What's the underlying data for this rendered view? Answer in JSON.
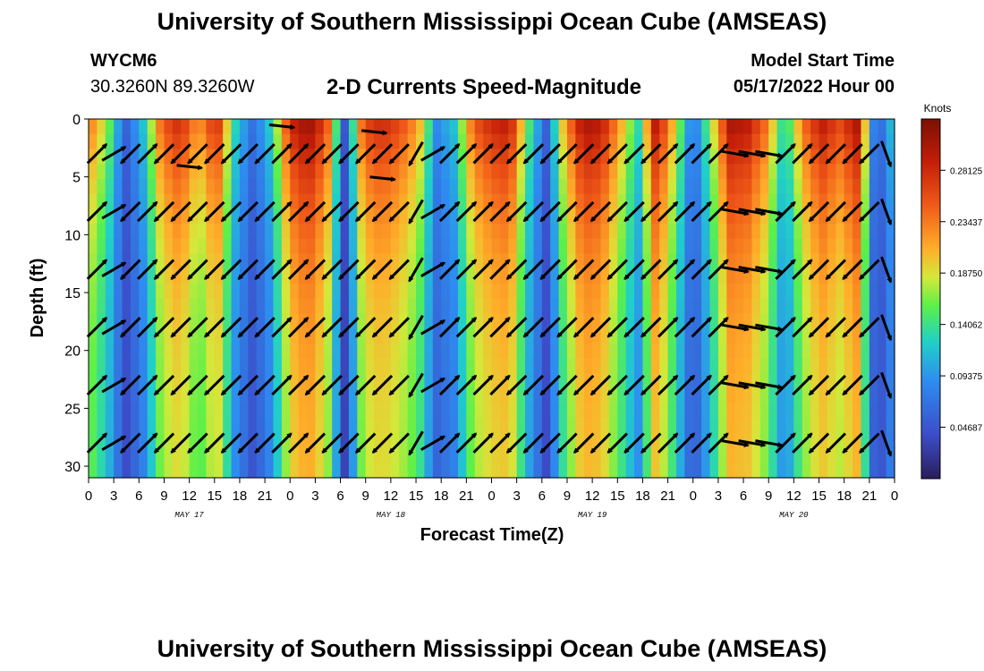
{
  "page": {
    "title": "University of Southern Mississippi Ocean Cube (AMSEAS)",
    "title_bottom": "University of Southern Mississippi Ocean Cube (AMSEAS)",
    "station_id": "WYCM6",
    "station_coords": "30.3260N  89.3260W",
    "subtitle": "2-D Currents Speed-Magnitude",
    "model_start_label": "Model Start Time",
    "model_start_value": "05/17/2022 Hour 00"
  },
  "chart_data": {
    "type": "heatmap",
    "title": "2-D Currents Speed-Magnitude",
    "xlabel": "Forecast Time(Z)",
    "ylabel": "Depth (ft)",
    "x_range_hours": [
      0,
      96
    ],
    "ylim": [
      0,
      31
    ],
    "y_inverted": true,
    "y_ticks": [
      0,
      5,
      10,
      15,
      20,
      25,
      30
    ],
    "x_tick_hours": [
      0,
      3,
      6,
      9,
      12,
      15,
      18,
      21,
      24,
      27,
      30,
      33,
      36,
      39,
      42,
      45,
      48,
      51,
      54,
      57,
      60,
      63,
      66,
      69,
      72,
      75,
      78,
      81,
      84,
      87,
      90,
      93,
      96
    ],
    "x_tick_labels": [
      "0",
      "3",
      "6",
      "9",
      "12",
      "15",
      "18",
      "21",
      "0",
      "3",
      "6",
      "9",
      "12",
      "15",
      "18",
      "21",
      "0",
      "3",
      "6",
      "9",
      "12",
      "15",
      "18",
      "21",
      "0",
      "3",
      "6",
      "9",
      "12",
      "15",
      "18",
      "21",
      "0"
    ],
    "day_labels": [
      {
        "label": "MAY 17",
        "hour": 12
      },
      {
        "label": "MAY 18",
        "hour": 36
      },
      {
        "label": "MAY 19",
        "hour": 60
      },
      {
        "label": "MAY 20",
        "hour": 84
      }
    ],
    "colorbar": {
      "label": "Knots",
      "range": [
        0,
        0.328
      ],
      "ticks": [
        0.28125,
        0.23437,
        0.1875,
        0.14062,
        0.09375,
        0.04687
      ],
      "tick_labels": [
        "0.28125",
        "0.23437",
        "0.18750",
        "0.14062",
        "0.09375",
        "0.04687"
      ]
    },
    "speed_profile_knots": [
      0.22,
      0.16,
      0.05,
      0.11,
      0.23,
      0.26,
      0.2,
      0.26,
      0.12,
      0.06,
      0.12,
      0.26,
      0.29,
      0.24,
      0.04,
      0.24,
      0.26,
      0.24,
      0.2,
      0.08,
      0.11,
      0.23,
      0.26,
      0.27,
      0.14,
      0.05,
      0.2,
      0.28,
      0.27,
      0.2,
      0.12,
      0.28,
      0.18,
      0.06,
      0.16,
      0.28,
      0.27,
      0.22,
      0.11,
      0.22,
      0.27,
      0.24,
      0.28,
      0.04,
      0.12
    ],
    "vector_columns_hours": [
      0,
      2,
      4,
      6,
      8,
      10,
      12,
      14,
      16,
      18,
      20,
      22,
      24,
      26,
      28,
      30,
      32,
      34,
      36,
      38,
      40,
      42,
      44,
      46,
      48,
      50,
      52,
      54,
      56,
      58,
      60,
      62,
      64,
      66,
      68,
      70,
      72,
      74,
      76,
      78,
      80,
      82,
      84,
      86,
      88,
      90,
      92,
      94
    ],
    "vector_rows_ft": [
      3,
      8,
      13,
      18,
      23,
      28
    ],
    "vector_direction_deg": [
      45,
      60,
      225,
      45,
      225,
      225,
      225,
      225,
      225,
      225,
      225,
      45,
      45,
      225,
      225,
      225,
      225,
      225,
      225,
      210,
      60,
      45,
      45,
      45,
      45,
      225,
      225,
      225,
      225,
      225,
      225,
      225,
      225,
      225,
      45,
      45,
      45,
      45,
      100,
      100,
      100,
      45,
      45,
      225,
      225,
      225,
      225,
      160
    ],
    "surface_flat_arrows": [
      {
        "hour": 12,
        "depth_ft": 4
      },
      {
        "hour": 23,
        "depth_ft": 0.5
      },
      {
        "hour": 34,
        "depth_ft": 1
      },
      {
        "hour": 35,
        "depth_ft": 5
      }
    ]
  }
}
